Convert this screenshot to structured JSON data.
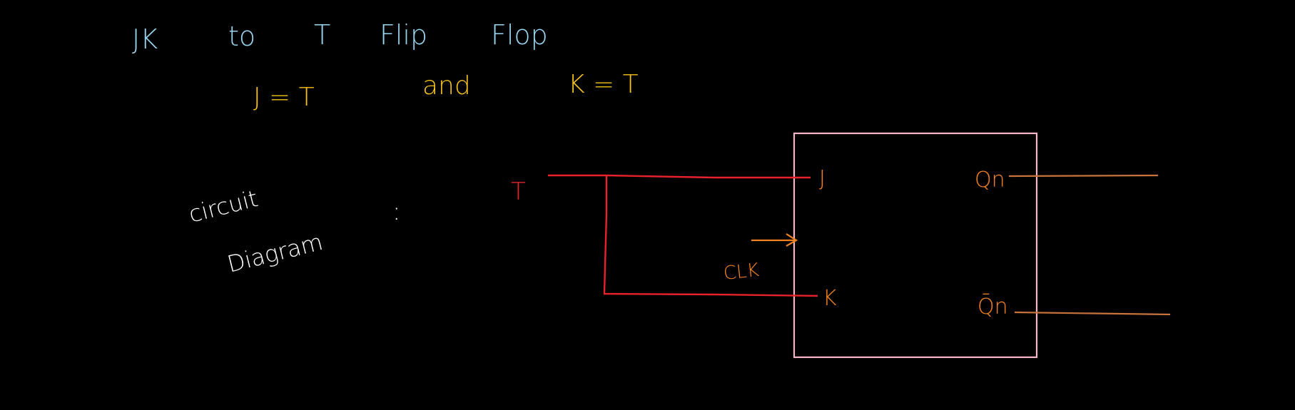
{
  "heading": {
    "words": [
      "JK",
      "to",
      "T",
      "Flip",
      "Flop"
    ],
    "color": "#9ad6f0"
  },
  "equation": {
    "left": "J = T",
    "connector": "and",
    "right": "K = T",
    "color": "#f7c21a"
  },
  "circuit_label": {
    "line1": "circuit",
    "line2": "Diagram",
    "colon": ":",
    "color": "#ffffff"
  },
  "diagram": {
    "input_label": "T",
    "input_color": "#e8222a",
    "wire_color": "#e8222a",
    "box_color": "#f4b8c8",
    "pin_color": "#f58220",
    "output_wire_color": "#c8733c",
    "pins": {
      "j": "J",
      "k": "K",
      "clk": "CLK",
      "q": "Qn",
      "q_bar": "Q̄n"
    }
  }
}
